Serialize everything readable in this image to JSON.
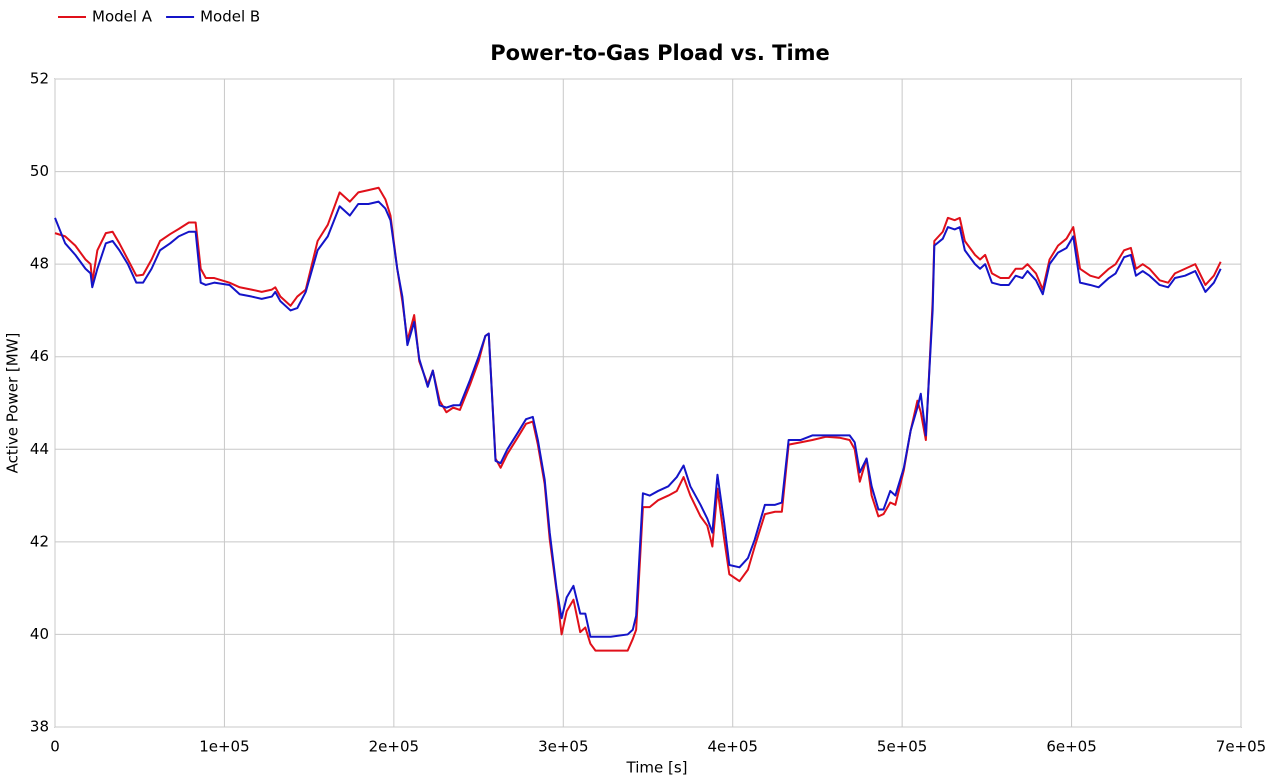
{
  "chart_data": {
    "type": "line",
    "title": "Power-to-Gas Pload vs. Time",
    "x_label": "Time [s]",
    "y_label": "Active Power [MW]",
    "legend_position": "top-left",
    "grid": true,
    "xlim": [
      0,
      700000
    ],
    "ylim": [
      38,
      52
    ],
    "xticks": [
      0,
      {
        "value": 100000,
        "label": "1e+05"
      },
      {
        "value": 200000,
        "label": "2e+05"
      },
      {
        "value": 300000,
        "label": "3e+05"
      },
      {
        "value": 400000,
        "label": "4e+05"
      },
      {
        "value": 500000,
        "label": "5e+05"
      },
      {
        "value": 600000,
        "label": "6e+05"
      },
      {
        "value": 700000,
        "label": "7e+05"
      }
    ],
    "yticks": [
      38,
      40,
      42,
      44,
      46,
      48,
      50,
      52
    ],
    "x": [
      0,
      6000,
      12000,
      18000,
      21000,
      22000,
      25000,
      30000,
      34000,
      38000,
      43000,
      48000,
      52000,
      57000,
      62000,
      68000,
      73000,
      79000,
      83000,
      86000,
      89000,
      94000,
      103000,
      109000,
      116000,
      122000,
      128000,
      130000,
      133000,
      139000,
      143000,
      148000,
      155000,
      161000,
      168000,
      174000,
      179000,
      185000,
      191000,
      195000,
      198000,
      202000,
      205000,
      208000,
      212000,
      215000,
      220000,
      223000,
      227000,
      231000,
      235000,
      239000,
      245000,
      250000,
      254000,
      256000,
      260000,
      263000,
      267000,
      273000,
      278000,
      282000,
      285000,
      289000,
      292000,
      296000,
      299000,
      302000,
      306000,
      310000,
      313000,
      316000,
      319000,
      328000,
      338000,
      341000,
      343000,
      347000,
      351000,
      356000,
      362000,
      367000,
      371000,
      375000,
      381000,
      385000,
      388000,
      391000,
      395000,
      398000,
      404000,
      409000,
      413000,
      419000,
      425000,
      429000,
      433000,
      440000,
      447000,
      455000,
      463000,
      469000,
      472000,
      475000,
      479000,
      482000,
      486000,
      489000,
      493000,
      496000,
      501000,
      505000,
      509000,
      511000,
      514000,
      518000,
      519000,
      524000,
      527000,
      531000,
      534000,
      537000,
      543000,
      546000,
      549000,
      553000,
      558000,
      563000,
      567000,
      571000,
      574000,
      579000,
      583000,
      587000,
      592000,
      597000,
      601000,
      605000,
      611000,
      616000,
      622000,
      626000,
      631000,
      635000,
      638000,
      642000,
      646000,
      652000,
      657000,
      661000,
      667000,
      673000,
      679000,
      684000,
      688000
    ],
    "series": [
      {
        "name": "Model A",
        "color": "#e0101a",
        "values": [
          48.67,
          48.6,
          48.4,
          48.1,
          48.0,
          47.6,
          48.3,
          48.67,
          48.7,
          48.45,
          48.1,
          47.75,
          47.77,
          48.1,
          48.5,
          48.65,
          48.76,
          48.9,
          48.9,
          47.9,
          47.7,
          47.7,
          47.6,
          47.5,
          47.45,
          47.4,
          47.45,
          47.5,
          47.3,
          47.1,
          47.3,
          47.45,
          48.5,
          48.85,
          49.55,
          49.35,
          49.55,
          49.6,
          49.65,
          49.4,
          49.05,
          47.9,
          47.2,
          46.35,
          46.9,
          45.9,
          45.4,
          45.7,
          45.05,
          44.8,
          44.9,
          44.85,
          45.4,
          45.9,
          46.45,
          46.5,
          43.8,
          43.6,
          43.9,
          44.25,
          44.55,
          44.6,
          44.1,
          43.25,
          42.05,
          40.95,
          40.0,
          40.5,
          40.75,
          40.05,
          40.15,
          39.8,
          39.65,
          39.65,
          39.65,
          39.9,
          40.1,
          42.75,
          42.75,
          42.9,
          43.0,
          43.1,
          43.4,
          43.0,
          42.55,
          42.35,
          41.9,
          43.15,
          42.05,
          41.3,
          41.15,
          41.4,
          41.9,
          42.6,
          42.65,
          42.65,
          44.1,
          44.15,
          44.2,
          44.27,
          44.25,
          44.2,
          44.0,
          43.3,
          43.8,
          43.0,
          42.55,
          42.6,
          42.85,
          42.8,
          43.55,
          44.4,
          45.05,
          44.8,
          44.2,
          47.2,
          48.5,
          48.7,
          49.0,
          48.95,
          49.0,
          48.5,
          48.2,
          48.1,
          48.2,
          47.8,
          47.7,
          47.7,
          47.9,
          47.9,
          48.0,
          47.8,
          47.45,
          48.1,
          48.4,
          48.55,
          48.8,
          47.9,
          47.75,
          47.7,
          47.9,
          48.0,
          48.3,
          48.35,
          47.9,
          48.0,
          47.9,
          47.65,
          47.6,
          47.8,
          47.9,
          48.0,
          47.55,
          47.75,
          48.05
        ]
      },
      {
        "name": "Model B",
        "color": "#1414c8",
        "values": [
          49.0,
          48.45,
          48.2,
          47.9,
          47.8,
          47.5,
          47.9,
          48.45,
          48.5,
          48.3,
          48.0,
          47.6,
          47.6,
          47.9,
          48.3,
          48.45,
          48.6,
          48.7,
          48.7,
          47.6,
          47.55,
          47.6,
          47.55,
          47.35,
          47.3,
          47.25,
          47.3,
          47.4,
          47.2,
          47.0,
          47.05,
          47.4,
          48.3,
          48.6,
          49.25,
          49.05,
          49.3,
          49.3,
          49.35,
          49.2,
          48.95,
          47.9,
          47.3,
          46.25,
          46.75,
          45.95,
          45.35,
          45.7,
          44.95,
          44.9,
          44.95,
          44.95,
          45.5,
          46.0,
          46.45,
          46.5,
          43.75,
          43.7,
          44.0,
          44.35,
          44.65,
          44.7,
          44.2,
          43.35,
          42.2,
          41.0,
          40.35,
          40.8,
          41.05,
          40.45,
          40.45,
          39.95,
          39.95,
          39.95,
          40.0,
          40.1,
          40.4,
          43.05,
          43.0,
          43.1,
          43.2,
          43.4,
          43.65,
          43.2,
          42.8,
          42.5,
          42.2,
          43.45,
          42.4,
          41.5,
          41.45,
          41.65,
          42.05,
          42.8,
          42.8,
          42.85,
          44.2,
          44.2,
          44.3,
          44.3,
          44.3,
          44.3,
          44.15,
          43.5,
          43.8,
          43.2,
          42.7,
          42.7,
          43.1,
          43.0,
          43.6,
          44.4,
          44.9,
          45.2,
          44.3,
          47.0,
          48.4,
          48.55,
          48.8,
          48.75,
          48.8,
          48.3,
          48.0,
          47.9,
          48.0,
          47.6,
          47.55,
          47.55,
          47.75,
          47.7,
          47.85,
          47.65,
          47.35,
          48.0,
          48.25,
          48.35,
          48.6,
          47.6,
          47.55,
          47.5,
          47.7,
          47.8,
          48.15,
          48.2,
          47.75,
          47.85,
          47.75,
          47.55,
          47.5,
          47.7,
          47.75,
          47.85,
          47.4,
          47.6,
          47.9
        ]
      }
    ]
  }
}
